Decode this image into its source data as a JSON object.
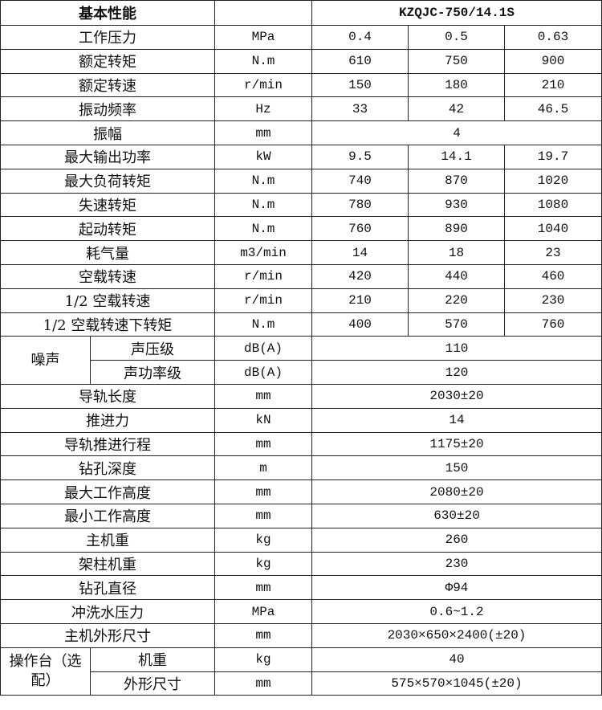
{
  "header": {
    "title": "基本性能",
    "unit": "",
    "model": "KZQJC-750/14.1S"
  },
  "rows": [
    {
      "label": "工作压力",
      "unit": "MPa",
      "values": [
        "0.4",
        "0.5",
        "0.63"
      ]
    },
    {
      "label": "额定转矩",
      "unit": "N.m",
      "values": [
        "610",
        "750",
        "900"
      ]
    },
    {
      "label": "额定转速",
      "unit": "r/min",
      "values": [
        "150",
        "180",
        "210"
      ]
    },
    {
      "label": "振动频率",
      "unit": "Hz",
      "values": [
        "33",
        "42",
        "46.5"
      ]
    },
    {
      "label": "振幅",
      "unit": "mm",
      "values": [
        "4"
      ]
    },
    {
      "label": "最大输出功率",
      "unit": "kW",
      "values": [
        "9.5",
        "14.1",
        "19.7"
      ]
    },
    {
      "label": "最大负荷转矩",
      "unit": "N.m",
      "values": [
        "740",
        "870",
        "1020"
      ]
    },
    {
      "label": "失速转矩",
      "unit": "N.m",
      "values": [
        "780",
        "930",
        "1080"
      ]
    },
    {
      "label": "起动转矩",
      "unit": "N.m",
      "values": [
        "760",
        "890",
        "1040"
      ]
    },
    {
      "label": "耗气量",
      "unit": "m3/min",
      "values": [
        "14",
        "18",
        "23"
      ]
    },
    {
      "label": "空载转速",
      "unit": "r/min",
      "values": [
        "420",
        "440",
        "460"
      ]
    },
    {
      "label": "1/2 空载转速",
      "unit": "r/min",
      "values": [
        "210",
        "220",
        "230"
      ]
    },
    {
      "label": "1/2 空载转速下转矩",
      "unit": "N.m",
      "values": [
        "400",
        "570",
        "760"
      ]
    },
    {
      "group": "噪声",
      "sub": [
        {
          "label": "声压级",
          "unit": "dB(A)",
          "values": [
            "110"
          ]
        },
        {
          "label": "声功率级",
          "unit": "dB(A)",
          "values": [
            "120"
          ]
        }
      ]
    },
    {
      "label": "导轨长度",
      "unit": "mm",
      "values": [
        "2030±20"
      ]
    },
    {
      "label": "推进力",
      "unit": "kN",
      "values": [
        "14"
      ]
    },
    {
      "label": "导轨推进行程",
      "unit": "mm",
      "values": [
        "1175±20"
      ]
    },
    {
      "label": "钻孔深度",
      "unit": "m",
      "values": [
        "150"
      ]
    },
    {
      "label": "最大工作高度",
      "unit": "mm",
      "values": [
        "2080±20"
      ]
    },
    {
      "label": "最小工作高度",
      "unit": "mm",
      "values": [
        "630±20"
      ]
    },
    {
      "label": "主机重",
      "unit": "kg",
      "values": [
        "260"
      ]
    },
    {
      "label": "架柱机重",
      "unit": "kg",
      "values": [
        "230"
      ]
    },
    {
      "label": "钻孔直径",
      "unit": "mm",
      "values": [
        "Φ94"
      ]
    },
    {
      "label": "冲洗水压力",
      "unit": "MPa",
      "values": [
        "0.6~1.2"
      ]
    },
    {
      "label": "主机外形尺寸",
      "unit": "mm",
      "values": [
        "2030×650×2400(±20)"
      ]
    },
    {
      "group": "操作台（选配）",
      "sub": [
        {
          "label": "机重",
          "unit": "kg",
          "values": [
            "40"
          ]
        },
        {
          "label": "外形尺寸",
          "unit": "mm",
          "values": [
            "575×570×1045(±20)"
          ]
        }
      ]
    }
  ]
}
